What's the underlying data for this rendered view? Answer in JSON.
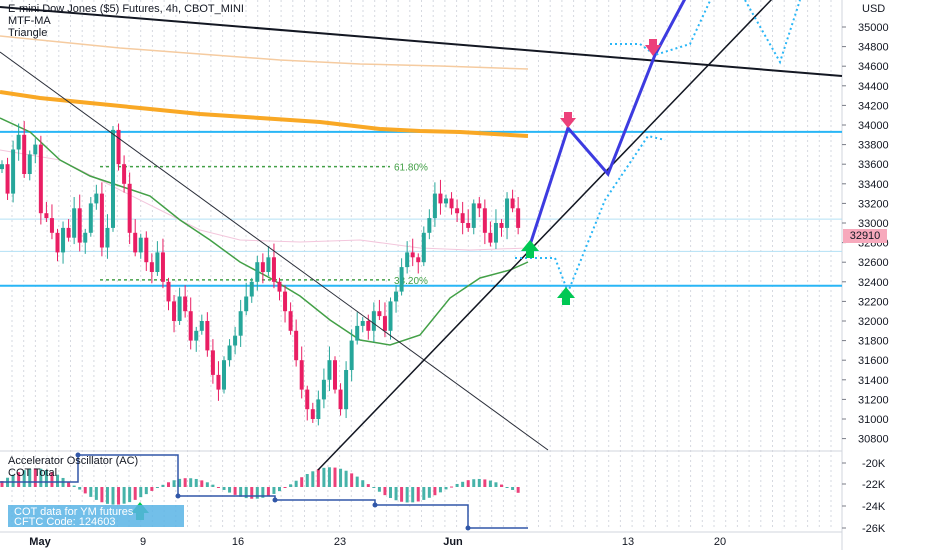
{
  "header": {
    "title": "E-mini Dow Jones ($5) Futures, 4h, CBOT_MINI",
    "indicator_1": "MTF-MA",
    "indicator_2": "Triangle"
  },
  "oscillator": {
    "name": "Accelerator Oscillator (AC)",
    "name2": "COT Total",
    "cot_line1": "COT data for YM futures",
    "cot_line2": "CFTC Code: 124603"
  },
  "currency": "USD",
  "last_price": "32910",
  "colors": {
    "bull": "#26a69a",
    "bear": "#e91e63",
    "ma_green": "#43a047",
    "ma_orange": "#f9a825",
    "level_blue": "#29b6f6",
    "projection": "#3d3be0",
    "up_arrow": "#00c853",
    "down_arrow": "#ec407a"
  },
  "chart_data": {
    "type": "candlestick",
    "x_ticks": [
      "May",
      "9",
      "16",
      "23",
      "Jun",
      "13",
      "20"
    ],
    "price_ticks": [
      35000,
      34800,
      34600,
      34400,
      34200,
      34000,
      33800,
      33600,
      33400,
      33200,
      33000,
      32800,
      32600,
      32400,
      32200,
      32000,
      31800,
      31600,
      31400,
      31200,
      31000,
      30800
    ],
    "price_range": [
      30750,
      35200
    ],
    "osc_ticks": [
      "-20K",
      "-22K",
      "-24K",
      "-26K"
    ],
    "fib_levels": [
      {
        "label": "61.80%",
        "price": 33575
      },
      {
        "label": "38.20%",
        "price": 32420
      }
    ],
    "horizontal_levels": [
      33930,
      32360,
      33040,
      32710
    ],
    "last_price": 32910,
    "annotations": [
      "61.80%",
      "38.20%"
    ]
  }
}
